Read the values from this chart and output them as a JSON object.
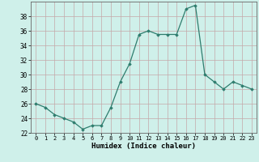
{
  "x": [
    0,
    1,
    2,
    3,
    4,
    5,
    6,
    7,
    8,
    9,
    10,
    11,
    12,
    13,
    14,
    15,
    16,
    17,
    18,
    19,
    20,
    21,
    22,
    23
  ],
  "y": [
    26,
    25.5,
    24.5,
    24,
    23.5,
    22.5,
    23,
    23,
    25.5,
    29,
    31.5,
    35.5,
    36,
    35.5,
    35.5,
    35.5,
    39,
    39.5,
    30,
    29,
    28,
    29,
    28.5,
    28
  ],
  "title": "",
  "xlabel": "Humidex (Indice chaleur)",
  "ylabel": "",
  "ylim": [
    22,
    40
  ],
  "xlim": [
    -0.5,
    23.5
  ],
  "yticks": [
    22,
    24,
    26,
    28,
    30,
    32,
    34,
    36,
    38
  ],
  "xticks": [
    0,
    1,
    2,
    3,
    4,
    5,
    6,
    7,
    8,
    9,
    10,
    11,
    12,
    13,
    14,
    15,
    16,
    17,
    18,
    19,
    20,
    21,
    22,
    23
  ],
  "line_color": "#2e7d6e",
  "marker_color": "#2e7d6e",
  "bg_color": "#cff0ea",
  "grid_major_color": "#c4a8a8",
  "grid_minor_color": "#ddd8d8",
  "fig_bg": "#cff0ea"
}
